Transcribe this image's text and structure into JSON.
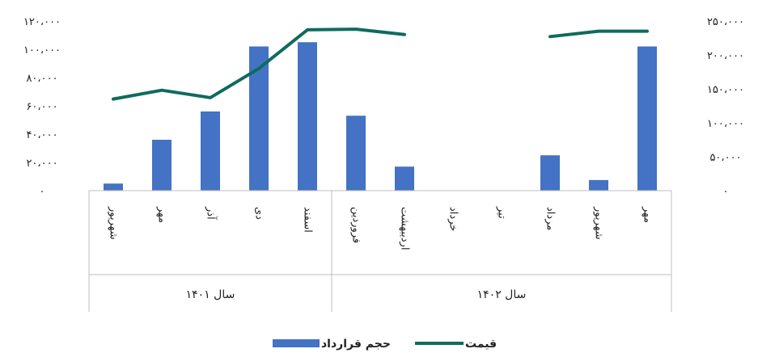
{
  "chart_data": {
    "type": "bar",
    "categories": [
      "شهریور",
      "مهر",
      "آذر",
      "دی",
      "اسفند",
      "فروردین",
      "اردیبهشت",
      "خرداد",
      "تیر",
      "مرداد",
      "شهریور",
      "مهر"
    ],
    "groups": [
      {
        "label": "سال ۱۴۰۱",
        "count": 5
      },
      {
        "label": "سال ۱۴۰۲",
        "count": 7
      }
    ],
    "series": [
      {
        "name": "حجم قرارداد",
        "kind": "bar",
        "axis": "left",
        "color": "#4472C4",
        "values": [
          5000,
          36000,
          56000,
          102000,
          105000,
          53000,
          17000,
          0,
          0,
          25000,
          7500,
          102000
        ]
      },
      {
        "name": "قیمت",
        "kind": "line",
        "axis": "right",
        "color": "#0F6B5E",
        "values": [
          135000,
          148000,
          137000,
          180000,
          237000,
          238000,
          230000,
          null,
          null,
          227000,
          235000,
          235000
        ]
      }
    ],
    "y_left": {
      "ylim": [
        0,
        120000
      ],
      "ticks": [
        0,
        20000,
        40000,
        60000,
        80000,
        100000,
        120000
      ],
      "tick_labels": [
        "۰",
        "۲۰،۰۰۰",
        "۴۰،۰۰۰",
        "۶۰،۰۰۰",
        "۸۰،۰۰۰",
        "۱۰۰،۰۰۰",
        "۱۲۰،۰۰۰"
      ]
    },
    "y_right": {
      "ylim": [
        0,
        250000
      ],
      "ticks": [
        0,
        50000,
        100000,
        150000,
        200000,
        250000
      ],
      "tick_labels": [
        "۰",
        "۵۰،۰۰۰",
        "۱۰۰،۰۰۰",
        "۱۵۰،۰۰۰",
        "۲۰۰،۰۰۰",
        "۲۵۰،۰۰۰"
      ]
    },
    "grid": false,
    "legend": {
      "placement": "bottom",
      "entries": [
        {
          "label": "قیمت",
          "kind": "line",
          "color": "#0F6B5E"
        },
        {
          "label": "حجم قرارداد",
          "kind": "bar",
          "color": "#4472C4"
        }
      ]
    }
  }
}
